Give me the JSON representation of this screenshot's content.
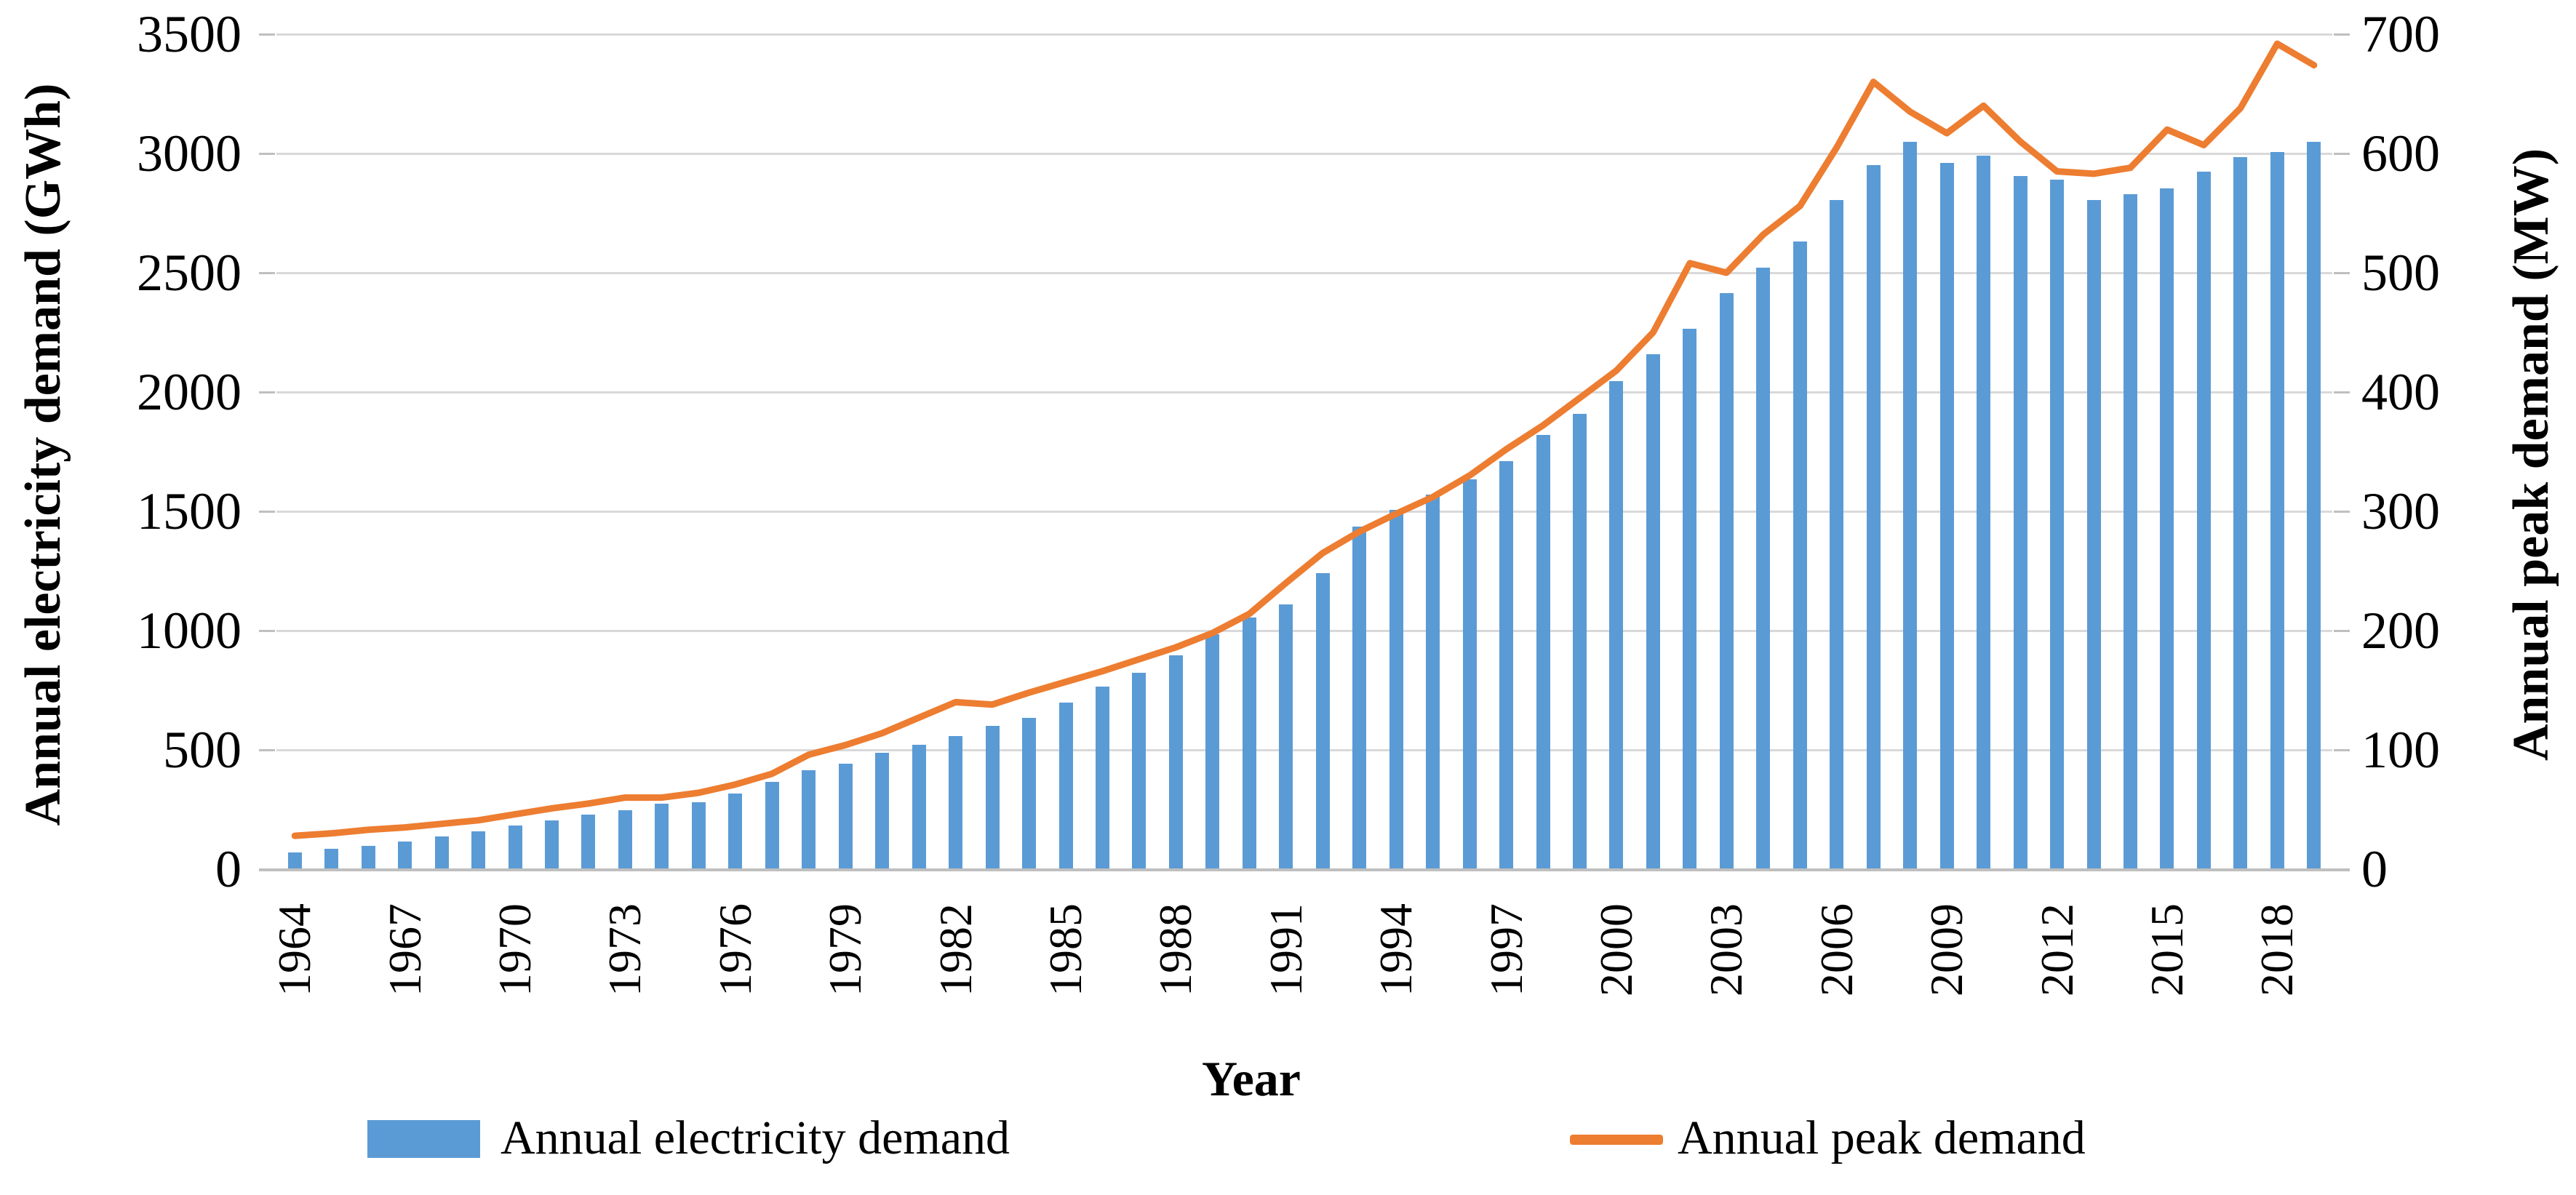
{
  "chart_data": {
    "type": "bar+line combo",
    "title": "",
    "x_axis": {
      "title": "Year",
      "tick_label_years": [
        "1964",
        "1967",
        "1970",
        "1973",
        "1976",
        "1979",
        "1982",
        "1985",
        "1988",
        "1991",
        "1994",
        "1997",
        "2000",
        "2003",
        "2006",
        "2009",
        "2012",
        "2015",
        "2018"
      ]
    },
    "left_axis": {
      "title": "Annual electricity demand (GWh)",
      "min": 0,
      "max": 3500,
      "step": 500,
      "tick_labels": [
        "0",
        "500",
        "1000",
        "1500",
        "2000",
        "2500",
        "3000",
        "3500"
      ]
    },
    "right_axis": {
      "title": "Annual peak demand (MW)",
      "min": 0,
      "max": 700,
      "step": 100,
      "tick_labels": [
        "0",
        "100",
        "200",
        "300",
        "400",
        "500",
        "600",
        "700"
      ]
    },
    "years": [
      1964,
      1965,
      1966,
      1967,
      1968,
      1969,
      1970,
      1971,
      1972,
      1973,
      1974,
      1975,
      1976,
      1977,
      1978,
      1979,
      1980,
      1981,
      1982,
      1983,
      1984,
      1985,
      1986,
      1987,
      1988,
      1989,
      1990,
      1991,
      1992,
      1993,
      1994,
      1995,
      1996,
      1997,
      1998,
      1999,
      2000,
      2001,
      2002,
      2003,
      2004,
      2005,
      2006,
      2007,
      2008,
      2009,
      2010,
      2011,
      2012,
      2013,
      2014,
      2015,
      2016,
      2017,
      2018,
      2019
    ],
    "series": [
      {
        "name": "Annual electricity demand",
        "type": "bar",
        "axis": "left",
        "unit": "GWh",
        "color": "#5b9bd5",
        "values": [
          70,
          84,
          99,
          117,
          138,
          160,
          184,
          205,
          230,
          248,
          275,
          282,
          317,
          367,
          415,
          443,
          488,
          523,
          558,
          600,
          635,
          698,
          765,
          823,
          895,
          985,
          1055,
          1110,
          1240,
          1435,
          1505,
          1570,
          1635,
          1710,
          1820,
          1910,
          2045,
          2160,
          2265,
          2415,
          2520,
          2630,
          2805,
          2950,
          3050,
          2960,
          2990,
          2905,
          2890,
          2805,
          2830,
          2855,
          2925,
          2985,
          3005,
          3050
        ]
      },
      {
        "name": "Annual peak demand",
        "type": "line",
        "axis": "right",
        "unit": "MW",
        "color": "#ed7d31",
        "values": [
          28,
          30,
          33,
          35,
          38,
          41,
          46,
          51,
          55,
          60,
          60,
          64,
          71,
          80,
          96,
          104,
          114,
          127,
          140,
          138,
          148,
          157,
          166,
          176,
          186,
          198,
          214,
          240,
          265,
          283,
          298,
          312,
          330,
          352,
          372,
          395,
          418,
          450,
          508,
          500,
          532,
          556,
          605,
          660,
          635,
          617,
          640,
          610,
          585,
          583,
          588,
          620,
          607,
          638,
          692,
          674
        ]
      }
    ],
    "legend": {
      "position": "bottom",
      "entries": [
        "Annual electricity demand",
        "Annual peak demand"
      ]
    },
    "grid": "horizontal gridlines on",
    "colors": {
      "bar": "#5b9bd5",
      "line": "#ed7d31",
      "gridline": "#d9d9d9",
      "axis_line": "#bfbfbf",
      "text": "#000000"
    }
  }
}
